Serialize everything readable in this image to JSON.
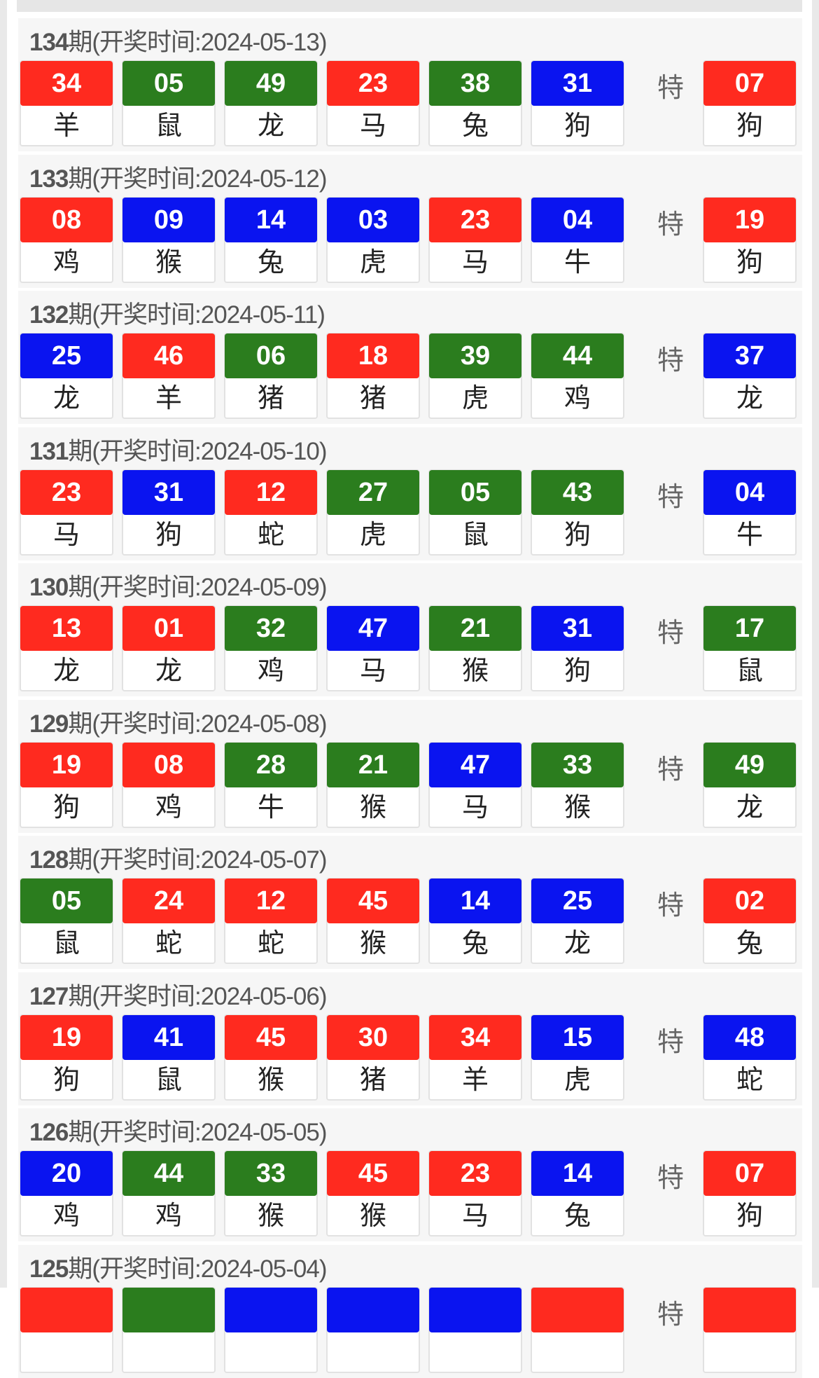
{
  "special_label": "特",
  "colors": {
    "red": "#ff2a1f",
    "green": "#2b7d1e",
    "blue": "#0a14f0"
  },
  "draws": [
    {
      "period": "134",
      "label": "期(开奖时间:2024-05-13)",
      "balls": [
        [
          "34",
          "羊",
          "red"
        ],
        [
          "05",
          "鼠",
          "green"
        ],
        [
          "49",
          "龙",
          "green"
        ],
        [
          "23",
          "马",
          "red"
        ],
        [
          "38",
          "兔",
          "green"
        ],
        [
          "31",
          "狗",
          "blue"
        ]
      ],
      "special": [
        "07",
        "狗",
        "red"
      ]
    },
    {
      "period": "133",
      "label": "期(开奖时间:2024-05-12)",
      "balls": [
        [
          "08",
          "鸡",
          "red"
        ],
        [
          "09",
          "猴",
          "blue"
        ],
        [
          "14",
          "兔",
          "blue"
        ],
        [
          "03",
          "虎",
          "blue"
        ],
        [
          "23",
          "马",
          "red"
        ],
        [
          "04",
          "牛",
          "blue"
        ]
      ],
      "special": [
        "19",
        "狗",
        "red"
      ]
    },
    {
      "period": "132",
      "label": "期(开奖时间:2024-05-11)",
      "balls": [
        [
          "25",
          "龙",
          "blue"
        ],
        [
          "46",
          "羊",
          "red"
        ],
        [
          "06",
          "猪",
          "green"
        ],
        [
          "18",
          "猪",
          "red"
        ],
        [
          "39",
          "虎",
          "green"
        ],
        [
          "44",
          "鸡",
          "green"
        ]
      ],
      "special": [
        "37",
        "龙",
        "blue"
      ]
    },
    {
      "period": "131",
      "label": "期(开奖时间:2024-05-10)",
      "balls": [
        [
          "23",
          "马",
          "red"
        ],
        [
          "31",
          "狗",
          "blue"
        ],
        [
          "12",
          "蛇",
          "red"
        ],
        [
          "27",
          "虎",
          "green"
        ],
        [
          "05",
          "鼠",
          "green"
        ],
        [
          "43",
          "狗",
          "green"
        ]
      ],
      "special": [
        "04",
        "牛",
        "blue"
      ]
    },
    {
      "period": "130",
      "label": "期(开奖时间:2024-05-09)",
      "balls": [
        [
          "13",
          "龙",
          "red"
        ],
        [
          "01",
          "龙",
          "red"
        ],
        [
          "32",
          "鸡",
          "green"
        ],
        [
          "47",
          "马",
          "blue"
        ],
        [
          "21",
          "猴",
          "green"
        ],
        [
          "31",
          "狗",
          "blue"
        ]
      ],
      "special": [
        "17",
        "鼠",
        "green"
      ]
    },
    {
      "period": "129",
      "label": "期(开奖时间:2024-05-08)",
      "balls": [
        [
          "19",
          "狗",
          "red"
        ],
        [
          "08",
          "鸡",
          "red"
        ],
        [
          "28",
          "牛",
          "green"
        ],
        [
          "21",
          "猴",
          "green"
        ],
        [
          "47",
          "马",
          "blue"
        ],
        [
          "33",
          "猴",
          "green"
        ]
      ],
      "special": [
        "49",
        "龙",
        "green"
      ]
    },
    {
      "period": "128",
      "label": "期(开奖时间:2024-05-07)",
      "balls": [
        [
          "05",
          "鼠",
          "green"
        ],
        [
          "24",
          "蛇",
          "red"
        ],
        [
          "12",
          "蛇",
          "red"
        ],
        [
          "45",
          "猴",
          "red"
        ],
        [
          "14",
          "兔",
          "blue"
        ],
        [
          "25",
          "龙",
          "blue"
        ]
      ],
      "special": [
        "02",
        "兔",
        "red"
      ]
    },
    {
      "period": "127",
      "label": "期(开奖时间:2024-05-06)",
      "balls": [
        [
          "19",
          "狗",
          "red"
        ],
        [
          "41",
          "鼠",
          "blue"
        ],
        [
          "45",
          "猴",
          "red"
        ],
        [
          "30",
          "猪",
          "red"
        ],
        [
          "34",
          "羊",
          "red"
        ],
        [
          "15",
          "虎",
          "blue"
        ]
      ],
      "special": [
        "48",
        "蛇",
        "blue"
      ]
    },
    {
      "period": "126",
      "label": "期(开奖时间:2024-05-05)",
      "balls": [
        [
          "20",
          "鸡",
          "blue"
        ],
        [
          "44",
          "鸡",
          "green"
        ],
        [
          "33",
          "猴",
          "green"
        ],
        [
          "45",
          "猴",
          "red"
        ],
        [
          "23",
          "马",
          "red"
        ],
        [
          "14",
          "兔",
          "blue"
        ]
      ],
      "special": [
        "07",
        "狗",
        "red"
      ]
    },
    {
      "period": "125",
      "label": "期(开奖时间:2024-05-04)",
      "balls": [
        [
          "",
          "",
          "red"
        ],
        [
          "",
          "",
          "green"
        ],
        [
          "",
          "",
          "blue"
        ],
        [
          "",
          "",
          "blue"
        ],
        [
          "",
          "",
          "blue"
        ],
        [
          "",
          "",
          "red"
        ]
      ],
      "special": [
        "",
        "",
        "red"
      ]
    }
  ]
}
